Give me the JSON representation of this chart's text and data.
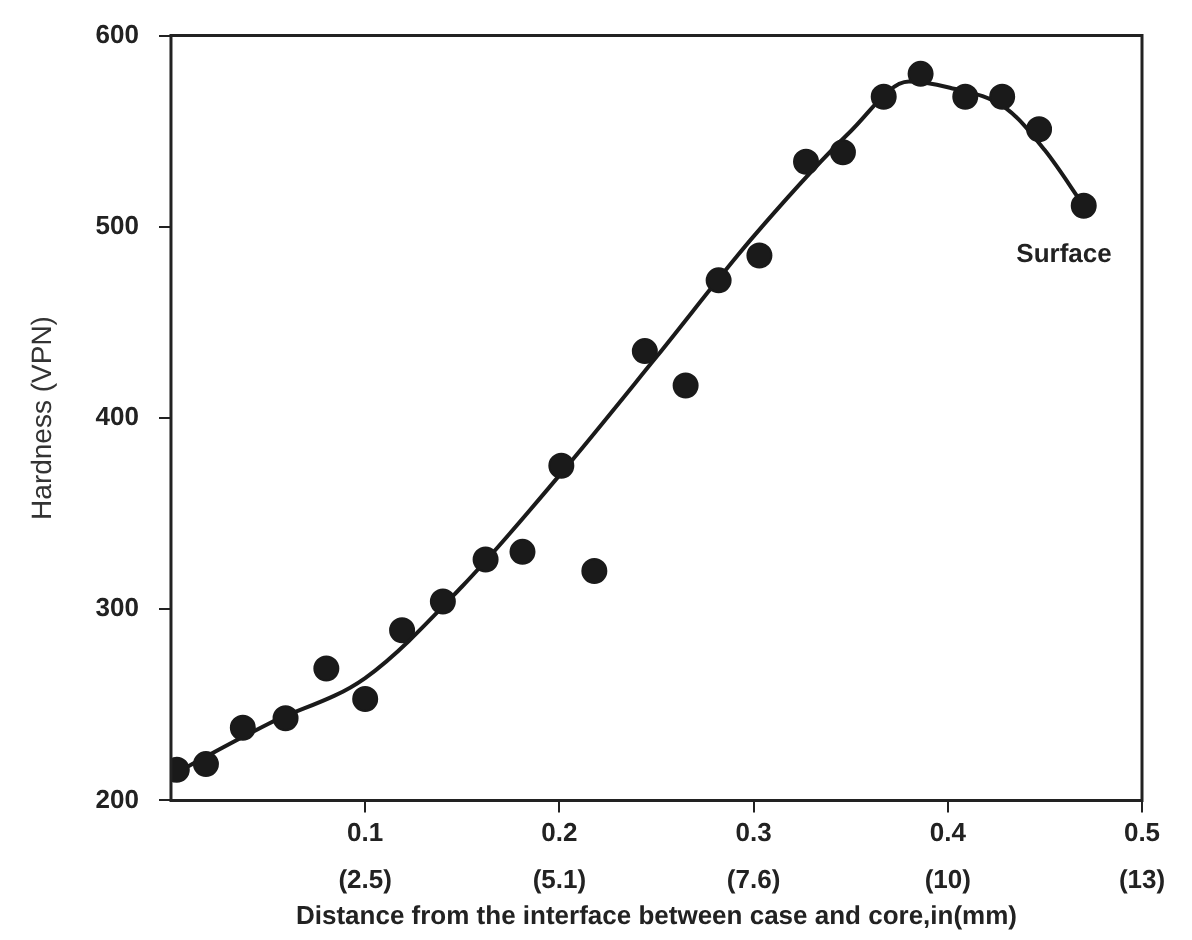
{
  "chart_data": {
    "type": "scatter",
    "xlabel": "Distance from the interface between case and core,in(mm)",
    "ylabel": "Hardness (VPN)",
    "annotations": [
      {
        "text": "Surface",
        "x": 0.47,
        "y": 511
      }
    ],
    "xlim": [
      0,
      0.5
    ],
    "ylim": [
      200,
      600
    ],
    "xticks": [
      0.1,
      0.2,
      0.3,
      0.4,
      0.5
    ],
    "x2lim": [
      0,
      12.7
    ],
    "x2ticks": [
      {
        "value": 2.54,
        "label": "(2.5)"
      },
      {
        "value": 5.08,
        "label": "(5.1)"
      },
      {
        "value": 7.62,
        "label": "(7.6)"
      },
      {
        "value": 10.16,
        "label": "(10)"
      },
      {
        "value": 12.7,
        "label": "(13)"
      }
    ],
    "yticks": [
      200,
      300,
      400,
      500,
      600
    ],
    "grid": false,
    "legend": false,
    "series": [
      {
        "color": "#1a1a1a",
        "marker": "circle",
        "x": [
          0.003,
          0.018,
          0.037,
          0.059,
          0.08,
          0.1,
          0.119,
          0.14,
          0.162,
          0.181,
          0.201,
          0.218,
          0.244,
          0.265,
          0.282,
          0.303,
          0.327,
          0.346,
          0.367,
          0.386,
          0.409,
          0.428,
          0.447,
          0.47
        ],
        "values": [
          216,
          219,
          238,
          243,
          269,
          253,
          289,
          304,
          326,
          330,
          375,
          320,
          435,
          417,
          472,
          485,
          534,
          539,
          568,
          580,
          568,
          568,
          551,
          511
        ]
      },
      {
        "type": "line",
        "color": "#1a1a1a",
        "marker": "none",
        "line_style": "solid",
        "x": [
          0,
          0.05,
          0.1,
          0.15,
          0.2,
          0.25,
          0.3,
          0.35,
          0.38,
          0.4,
          0.43,
          0.45,
          0.47
        ],
        "values": [
          213,
          240,
          264,
          312,
          370,
          432,
          495,
          550,
          576,
          573,
          562,
          540,
          511
        ]
      }
    ]
  }
}
